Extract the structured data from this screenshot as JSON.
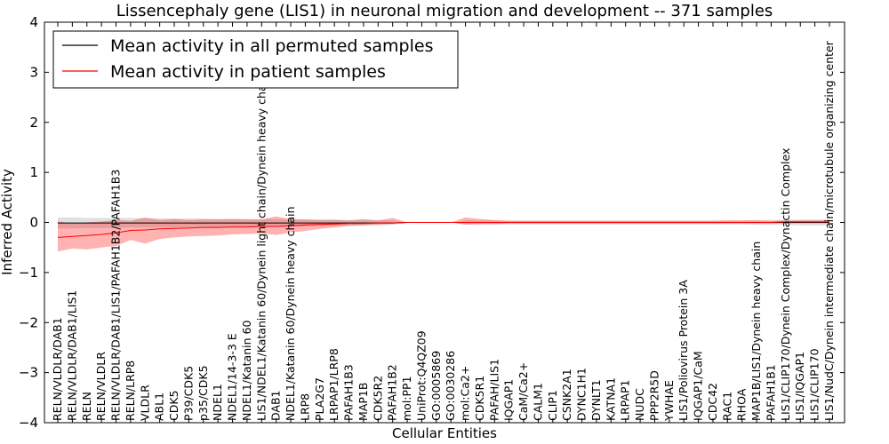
{
  "chart_data": {
    "type": "line",
    "title": "Lissencephaly gene (LIS1) in neuronal migration and development -- 371 samples",
    "xlabel": "Cellular Entities",
    "ylabel": "Inferred Activity",
    "ylim": [
      -4,
      4
    ],
    "yticks": [
      -4,
      -3,
      -2,
      -1,
      0,
      1,
      2,
      3,
      4
    ],
    "ytick_labels": [
      "−4",
      "−3",
      "−2",
      "−1",
      "0",
      "1",
      "2",
      "3",
      "4"
    ],
    "legend": {
      "placement": "top-left",
      "entries": [
        {
          "label": "Mean activity in all permuted samples",
          "color": "#000000"
        },
        {
          "label": "Mean activity in patient samples",
          "color": "#ff0000"
        }
      ]
    },
    "categories": [
      "RELN/VLDLR/DAB1",
      "RELN/VLDLR/DAB1/LIS1",
      "RELN",
      "RELN/VLDLR",
      "RELN/VLDLR/DAB1/LIS1/PAFAH1B2/PAFAH1B3",
      "RELN/LRP8",
      "VLDLR",
      "ABL1",
      "CDK5",
      "P39/CDK5",
      "p35/CDK5",
      "NDEL1",
      "NDEL1/14-3-3 E",
      "NDEL1/Katanin 60",
      "LIS1/NDEL1/Katanin 60/Dynein light chain/Dynein heavy chain",
      "DAB1",
      "NDEL1/Katanin 60/Dynein heavy chain",
      "LRP8",
      "PLA2G7",
      "LRPAP1/LRP8",
      "PAFAH1B3",
      "MAP1B",
      "CDK5R2",
      "PAFAH1B2",
      "mol:PP1",
      "UniProt:Q4QZ09",
      "GO:0005869",
      "GO:0030286",
      "mol:Ca2+",
      "CDK5R1",
      "PAFAH/LIS1",
      "IQGAP1",
      "CaM/Ca2+",
      "CALM1",
      "CLIP1",
      "CSNK2A1",
      "DYNC1H1",
      "DYNLT1",
      "KATNA1",
      "LRPAP1",
      "NUDC",
      "PPP2R5D",
      "YWHAE",
      "LIS1/Poliovirus Protein 3A",
      "IQGAP1/CaM",
      "CDC42",
      "RAC1",
      "RHOA",
      "MAP1B/LIS1/Dynein heavy chain",
      "PAFAH1B1",
      "LIS1/CLIP170/Dynein Complex/Dynactin Complex",
      "LIS1/IQGAP1",
      "LIS1/CLIP170",
      "LIS1/NudC/Dynein intermediate chain/microtubule organizing center"
    ],
    "series": [
      {
        "name": "Mean activity in all permuted samples",
        "color": "#000000",
        "values": [
          -0.01,
          -0.01,
          -0.01,
          -0.01,
          -0.01,
          -0.01,
          -0.01,
          -0.01,
          -0.01,
          -0.01,
          -0.01,
          -0.01,
          -0.01,
          -0.01,
          -0.01,
          -0.01,
          -0.01,
          -0.01,
          -0.01,
          -0.01,
          -0.01,
          -0.01,
          -0.01,
          -0.01,
          0,
          0,
          0,
          0,
          0,
          0,
          0,
          0,
          0,
          0,
          0,
          0,
          0,
          0,
          0,
          0,
          0,
          0,
          0,
          0,
          0,
          0,
          0,
          0,
          0,
          0,
          0,
          0,
          0,
          0
        ],
        "band_low": [
          -0.12,
          -0.12,
          -0.11,
          -0.11,
          -0.11,
          -0.1,
          -0.1,
          -0.1,
          -0.1,
          -0.09,
          -0.09,
          -0.09,
          -0.09,
          -0.09,
          -0.09,
          -0.08,
          -0.08,
          -0.08,
          -0.07,
          -0.07,
          -0.07,
          -0.06,
          -0.06,
          -0.05,
          0,
          0,
          0,
          0,
          -0.05,
          -0.05,
          -0.05,
          -0.04,
          -0.04,
          -0.04,
          -0.04,
          -0.04,
          -0.04,
          -0.04,
          -0.04,
          -0.04,
          -0.04,
          -0.04,
          -0.04,
          -0.04,
          -0.04,
          -0.04,
          -0.04,
          -0.04,
          -0.05,
          -0.05,
          -0.05,
          -0.06,
          -0.06,
          -0.06
        ],
        "band_high": [
          0.1,
          0.1,
          0.09,
          0.09,
          0.09,
          0.09,
          0.08,
          0.08,
          0.08,
          0.08,
          0.08,
          0.07,
          0.07,
          0.07,
          0.07,
          0.07,
          0.06,
          0.06,
          0.06,
          0.06,
          0.05,
          0.05,
          0.05,
          0.04,
          0,
          0,
          0,
          0,
          0.04,
          0.04,
          0.04,
          0.04,
          0.04,
          0.04,
          0.04,
          0.04,
          0.04,
          0.04,
          0.04,
          0.04,
          0.04,
          0.04,
          0.04,
          0.04,
          0.04,
          0.04,
          0.04,
          0.04,
          0.05,
          0.05,
          0.05,
          0.06,
          0.06,
          0.06
        ]
      },
      {
        "name": "Mean activity in patient samples",
        "color": "#ff0000",
        "values": [
          -0.3,
          -0.28,
          -0.26,
          -0.24,
          -0.21,
          -0.16,
          -0.15,
          -0.13,
          -0.12,
          -0.11,
          -0.1,
          -0.1,
          -0.09,
          -0.09,
          -0.08,
          -0.08,
          -0.07,
          -0.05,
          -0.04,
          -0.03,
          -0.02,
          -0.02,
          -0.01,
          -0.01,
          0,
          0,
          0,
          0,
          0,
          0,
          0,
          0,
          0,
          0,
          0,
          0,
          0,
          0,
          0,
          0,
          0,
          0,
          0,
          0,
          0,
          0,
          0,
          0,
          0,
          0,
          0.01,
          0.01,
          0.01,
          0.01
        ],
        "band_low": [
          -0.58,
          -0.52,
          -0.54,
          -0.5,
          -0.47,
          -0.35,
          -0.42,
          -0.33,
          -0.3,
          -0.28,
          -0.27,
          -0.26,
          -0.24,
          -0.23,
          -0.22,
          -0.25,
          -0.2,
          -0.17,
          -0.13,
          -0.1,
          -0.07,
          -0.06,
          -0.04,
          -0.03,
          0,
          0,
          0,
          0,
          -0.04,
          -0.03,
          -0.03,
          -0.02,
          -0.02,
          -0.02,
          -0.02,
          -0.02,
          -0.02,
          -0.02,
          -0.02,
          -0.02,
          -0.02,
          -0.02,
          -0.02,
          -0.02,
          -0.02,
          -0.02,
          -0.02,
          -0.02,
          -0.02,
          -0.02,
          -0.02,
          -0.02,
          -0.02,
          -0.02
        ],
        "band_high": [
          0.02,
          -0.02,
          0.0,
          0.02,
          0.05,
          0.03,
          0.1,
          0.05,
          0.07,
          0.05,
          0.06,
          0.06,
          0.07,
          0.06,
          0.06,
          0.12,
          0.07,
          0.06,
          0.05,
          0.05,
          0.04,
          0.07,
          0.04,
          0.09,
          0,
          0,
          0,
          0,
          0.1,
          0.07,
          0.05,
          0.03,
          0.03,
          0.03,
          0.03,
          0.03,
          0.03,
          0.03,
          0.03,
          0.03,
          0.03,
          0.03,
          0.03,
          0.03,
          0.03,
          0.03,
          0.04,
          0.04,
          0.04,
          0.03,
          0.04,
          0.04,
          0.04,
          0.04
        ]
      }
    ]
  }
}
